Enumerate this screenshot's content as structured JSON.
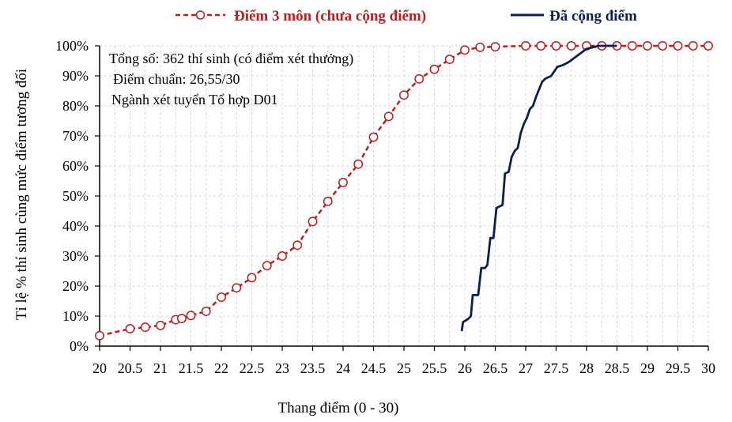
{
  "chart_data": {
    "type": "line",
    "xlabel": "Thang điểm (0 - 30)",
    "ylabel": "Tỉ lệ % thí sinh cùng mức điểm tương đối",
    "xlim": [
      20,
      30
    ],
    "ylim": [
      0,
      100
    ],
    "x_ticks": [
      "20",
      "20.5",
      "21",
      "21.5",
      "22",
      "22.5",
      "23",
      "23.5",
      "24",
      "24.5",
      "25",
      "25.5",
      "26",
      "26.5",
      "27",
      "27.5",
      "28",
      "28.5",
      "29",
      "29.5",
      "30"
    ],
    "y_ticks": [
      "0%",
      "10%",
      "20%",
      "30%",
      "40%",
      "50%",
      "60%",
      "70%",
      "80%",
      "90%",
      "100%"
    ],
    "grid": true,
    "legend_position": "top",
    "annotations": [
      "Tổng số: 362 thí sinh  (có điểm xét thưởng)",
      "Điểm chuẩn: 26,55/30",
      "Ngành xét tuyển Tổ hợp D01"
    ],
    "series": [
      {
        "name": "Điểm 3 môn (chưa cộng điểm)",
        "color": "#b22222",
        "style": "dashed-circle-markers",
        "points": [
          [
            20.0,
            3.5
          ],
          [
            20.5,
            5.8
          ],
          [
            20.75,
            6.3
          ],
          [
            21.0,
            6.9
          ],
          [
            21.25,
            8.8
          ],
          [
            21.35,
            9.2
          ],
          [
            21.5,
            10.2
          ],
          [
            21.75,
            11.6
          ],
          [
            22.0,
            16.3
          ],
          [
            22.25,
            19.4
          ],
          [
            22.5,
            22.8
          ],
          [
            22.75,
            26.8
          ],
          [
            23.0,
            30.0
          ],
          [
            23.25,
            33.6
          ],
          [
            23.5,
            41.5
          ],
          [
            23.75,
            48.2
          ],
          [
            24.0,
            54.5
          ],
          [
            24.25,
            60.6
          ],
          [
            24.5,
            69.6
          ],
          [
            24.75,
            76.5
          ],
          [
            25.0,
            83.6
          ],
          [
            25.25,
            89.0
          ],
          [
            25.5,
            92.2
          ],
          [
            25.75,
            95.5
          ],
          [
            26.0,
            98.6
          ],
          [
            26.25,
            99.5
          ],
          [
            26.5,
            99.7
          ],
          [
            27.0,
            100
          ],
          [
            27.25,
            100
          ],
          [
            27.5,
            100
          ],
          [
            27.75,
            100
          ],
          [
            28.0,
            100
          ],
          [
            28.25,
            100
          ],
          [
            28.5,
            100
          ],
          [
            28.75,
            100
          ],
          [
            29.0,
            100
          ],
          [
            29.25,
            100
          ],
          [
            29.5,
            100
          ],
          [
            29.75,
            100
          ],
          [
            30.0,
            100
          ]
        ]
      },
      {
        "name": "Đã cộng điểm",
        "color": "#0d1f4d",
        "style": "solid",
        "points": [
          [
            25.95,
            5
          ],
          [
            25.97,
            8
          ],
          [
            26.05,
            9
          ],
          [
            26.1,
            10
          ],
          [
            26.13,
            17
          ],
          [
            26.22,
            17
          ],
          [
            26.27,
            26
          ],
          [
            26.33,
            26
          ],
          [
            26.37,
            27
          ],
          [
            26.42,
            36
          ],
          [
            26.47,
            36
          ],
          [
            26.52,
            46
          ],
          [
            26.57,
            46.5
          ],
          [
            26.62,
            47
          ],
          [
            26.66,
            57.5
          ],
          [
            26.72,
            58
          ],
          [
            26.77,
            63
          ],
          [
            26.82,
            65
          ],
          [
            26.87,
            66
          ],
          [
            26.92,
            71
          ],
          [
            26.97,
            74
          ],
          [
            27.02,
            76
          ],
          [
            27.07,
            79
          ],
          [
            27.12,
            80
          ],
          [
            27.17,
            83
          ],
          [
            27.22,
            85.5
          ],
          [
            27.27,
            88
          ],
          [
            27.32,
            89
          ],
          [
            27.37,
            89.5
          ],
          [
            27.42,
            90
          ],
          [
            27.47,
            91.5
          ],
          [
            27.52,
            93
          ],
          [
            27.6,
            93.5
          ],
          [
            27.7,
            94.5
          ],
          [
            27.8,
            96
          ],
          [
            27.9,
            97.5
          ],
          [
            28.0,
            99
          ],
          [
            28.1,
            99.5
          ],
          [
            28.2,
            100
          ],
          [
            28.5,
            100
          ]
        ]
      }
    ]
  }
}
